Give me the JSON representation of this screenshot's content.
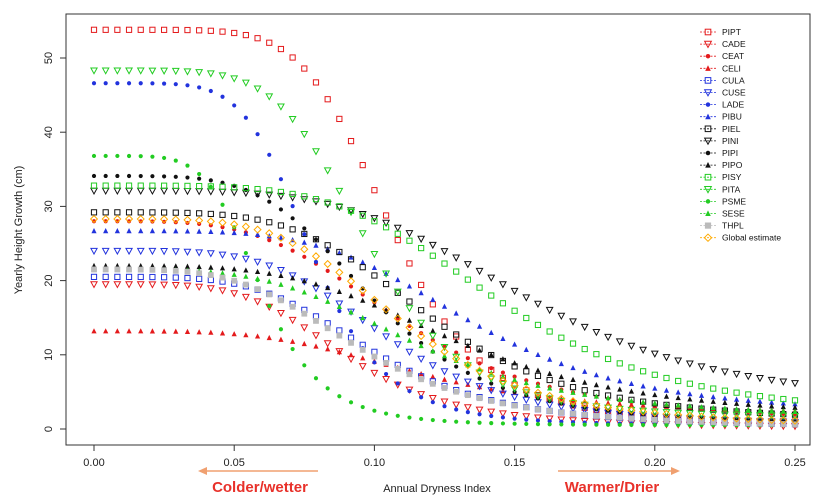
{
  "chart_data": {
    "type": "scatter",
    "xlabel": "Annual Dryness Index",
    "ylabel": "Yearly Height Growth (cm)",
    "xlim": [
      0,
      0.25
    ],
    "ylim": [
      -1,
      55
    ],
    "xticks": [
      "0.00",
      "0.05",
      "0.10",
      "0.15",
      "0.20",
      "0.25"
    ],
    "yticks": [
      "0",
      "10",
      "20",
      "30",
      "40",
      "50"
    ],
    "grid": false,
    "legend_position": "top-right",
    "annotations": {
      "left": {
        "text": "Colder/wetter",
        "color": "#e8312a",
        "arrow_color": "#f0a070"
      },
      "right": {
        "text": "Warmer/Drier",
        "color": "#e8312a",
        "arrow_color": "#f0a070"
      }
    },
    "series": [
      {
        "name": "PIPT",
        "color": "#e41a1c",
        "marker": "square-open",
        "y0": 53.8,
        "x50": 0.106,
        "k": 3.2,
        "ymin": 0.8
      },
      {
        "name": "CADE",
        "color": "#e41a1c",
        "marker": "triangle-down-open",
        "y0": 19.5,
        "x50": 0.09,
        "k": 2.3,
        "ymin": 0.2
      },
      {
        "name": "CEAT",
        "color": "#e41a1c",
        "marker": "dot",
        "y0": 28.0,
        "x50": 0.11,
        "k": 2.0,
        "ymin": 1.0
      },
      {
        "name": "CELI",
        "color": "#e41a1c",
        "marker": "triangle-up",
        "y0": 13.2,
        "x50": 0.115,
        "k": 2.0,
        "ymin": 2.0
      },
      {
        "name": "CULA",
        "color": "#2233dd",
        "marker": "square-open",
        "y0": 20.5,
        "x50": 0.1,
        "k": 2.2,
        "ymin": 0.3
      },
      {
        "name": "CUSE",
        "color": "#2233dd",
        "marker": "triangle-down-open",
        "y0": 24.0,
        "x50": 0.105,
        "k": 2.3,
        "ymin": 0.5
      },
      {
        "name": "LADE",
        "color": "#2233dd",
        "marker": "dot",
        "y0": 46.6,
        "x50": 0.078,
        "k": 3.0,
        "ymin": 0.5
      },
      {
        "name": "PIBU",
        "color": "#2233dd",
        "marker": "triangle-up",
        "y0": 26.7,
        "x50": 0.135,
        "k": 2.3,
        "ymin": 2.0
      },
      {
        "name": "PIEL",
        "color": "#111111",
        "marker": "square-open",
        "y0": 29.2,
        "x50": 0.12,
        "k": 2.3,
        "ymin": 1.0
      },
      {
        "name": "PINI",
        "color": "#111111",
        "marker": "triangle-down-open",
        "y0": 32.1,
        "x50": 0.155,
        "k": 2.2,
        "ymin": 3.0
      },
      {
        "name": "PIPI",
        "color": "#111111",
        "marker": "dot",
        "y0": 34.1,
        "x50": 0.1,
        "k": 2.3,
        "ymin": 0.5
      },
      {
        "name": "PIPO",
        "color": "#111111",
        "marker": "triangle-up",
        "y0": 22.0,
        "x50": 0.13,
        "k": 2.0,
        "ymin": 1.5
      },
      {
        "name": "PISY",
        "color": "#22cc22",
        "marker": "square-open",
        "y0": 32.8,
        "x50": 0.145,
        "k": 2.3,
        "ymin": 1.5
      },
      {
        "name": "PITA",
        "color": "#22cc22",
        "marker": "triangle-down-open",
        "y0": 48.3,
        "x50": 0.098,
        "k": 2.8,
        "ymin": 1.5
      },
      {
        "name": "PSME",
        "color": "#22cc22",
        "marker": "dot",
        "y0": 36.8,
        "x50": 0.06,
        "k": 2.8,
        "ymin": 0.5
      },
      {
        "name": "SESE",
        "color": "#22cc22",
        "marker": "triangle-up",
        "y0": 21.5,
        "x50": 0.115,
        "k": 2.0,
        "ymin": 1.5
      },
      {
        "name": "THPL",
        "color": "#bbbbbb",
        "marker": "square-filled",
        "y0": 21.5,
        "x50": 0.095,
        "k": 2.0,
        "ymin": 0.2
      },
      {
        "name": "Global estimate",
        "color": "#ffaa00",
        "marker": "diamond-open",
        "y0": 28.3,
        "x50": 0.11,
        "k": 2.3,
        "ymin": 0.5
      }
    ]
  }
}
